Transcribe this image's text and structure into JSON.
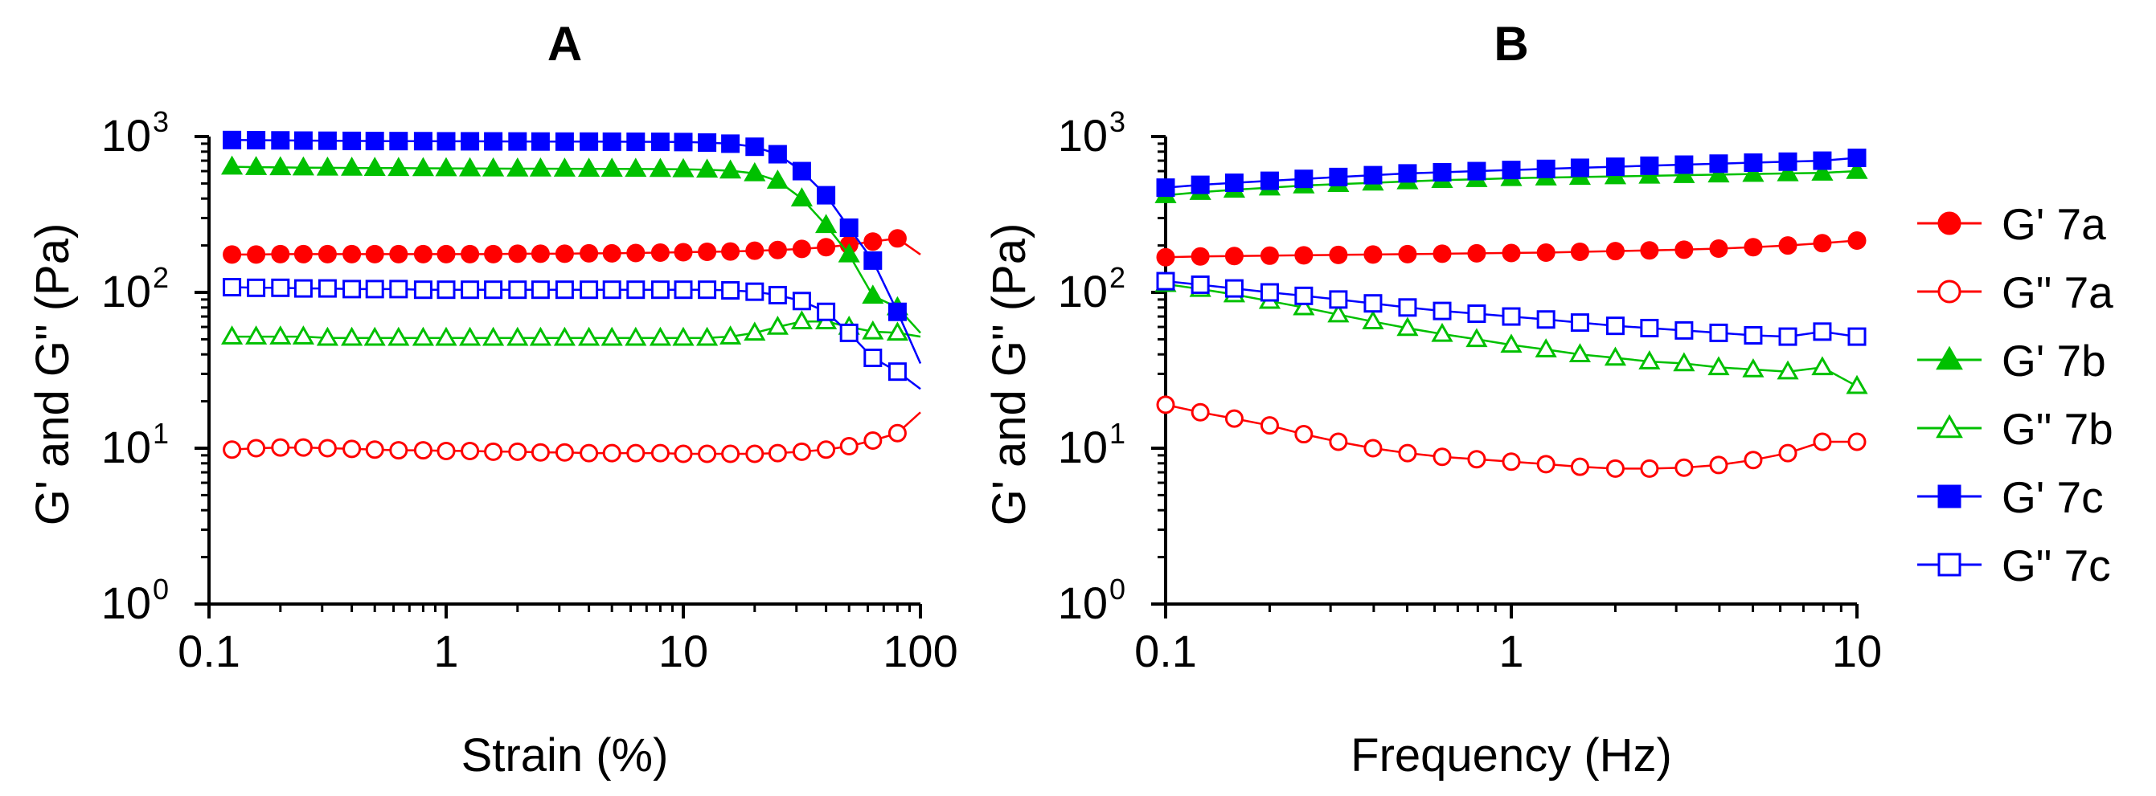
{
  "chart_data": [
    {
      "type": "line",
      "panel_label": "A",
      "xlabel": "Strain (%)",
      "ylabel": "G' and G\" (Pa)",
      "xscale": "log",
      "yscale": "log",
      "xlim": [
        0.1,
        100
      ],
      "ylim": [
        1,
        1000
      ],
      "xticks": [
        "0.1",
        "1",
        "10",
        "100"
      ],
      "yticks": [
        {
          "base": "10",
          "exp": "0"
        },
        {
          "base": "10",
          "exp": "1"
        },
        {
          "base": "10",
          "exp": "2"
        },
        {
          "base": "10",
          "exp": "3"
        }
      ],
      "x": [
        0.125,
        0.158,
        0.2,
        0.25,
        0.316,
        0.4,
        0.5,
        0.63,
        0.8,
        1.0,
        1.26,
        1.58,
        2.0,
        2.5,
        3.16,
        4.0,
        5.0,
        6.3,
        8.0,
        10,
        12.6,
        15.8,
        20,
        25,
        31.6,
        40,
        50,
        63,
        80
      ],
      "series": [
        {
          "name": "G' 7a",
          "color": "#ff0000",
          "marker": "circle",
          "filled": true,
          "values": [
            175,
            175,
            176,
            176,
            176,
            176,
            176,
            176,
            176,
            176,
            176,
            176,
            177,
            177,
            177,
            178,
            178,
            179,
            180,
            181,
            182,
            183,
            185,
            187,
            190,
            195,
            202,
            212,
            222
          ],
          "tail": [
            100,
            175
          ]
        },
        {
          "name": "G'' 7a",
          "color": "#ff0000",
          "marker": "circle",
          "filled": false,
          "values": [
            9.8,
            10.0,
            10.1,
            10.1,
            10.0,
            9.9,
            9.8,
            9.7,
            9.7,
            9.6,
            9.6,
            9.5,
            9.5,
            9.4,
            9.4,
            9.3,
            9.3,
            9.3,
            9.3,
            9.2,
            9.2,
            9.2,
            9.2,
            9.3,
            9.5,
            9.8,
            10.3,
            11.2,
            12.5
          ],
          "tail": [
            100,
            17
          ]
        },
        {
          "name": "G' 7b",
          "color": "#00c000",
          "marker": "triangle",
          "filled": true,
          "values": [
            640,
            636,
            634,
            632,
            630,
            629,
            628,
            627,
            626,
            625,
            624,
            623,
            622,
            622,
            621,
            620,
            620,
            619,
            618,
            616,
            612,
            604,
            580,
            520,
            400,
            270,
            175,
            95,
            80
          ],
          "tail": [
            100,
            55
          ]
        },
        {
          "name": "G'' 7b",
          "color": "#00c000",
          "marker": "triangle",
          "filled": false,
          "values": [
            52,
            52,
            52,
            52,
            51,
            51,
            51,
            51,
            51,
            51,
            51,
            51,
            51,
            51,
            51,
            51,
            51,
            51,
            51,
            51,
            51,
            52,
            55,
            60,
            65,
            65,
            60,
            56,
            55
          ],
          "tail": [
            100,
            52
          ]
        },
        {
          "name": "G' 7c",
          "color": "#0000ff",
          "marker": "square",
          "filled": true,
          "values": [
            950,
            948,
            945,
            942,
            940,
            938,
            936,
            935,
            934,
            932,
            932,
            931,
            930,
            929,
            928,
            928,
            927,
            926,
            925,
            922,
            915,
            900,
            860,
            770,
            600,
            420,
            260,
            160,
            75
          ],
          "tail": [
            100,
            35
          ]
        },
        {
          "name": "G'' 7c",
          "color": "#0000ff",
          "marker": "square",
          "filled": false,
          "values": [
            108,
            107,
            107,
            106,
            106,
            105,
            105,
            105,
            104,
            104,
            104,
            104,
            104,
            104,
            104,
            104,
            104,
            104,
            104,
            104,
            104,
            103,
            101,
            96,
            88,
            75,
            55,
            38,
            31
          ],
          "tail": [
            100,
            24
          ]
        }
      ]
    },
    {
      "type": "line",
      "panel_label": "B",
      "xlabel": "Frequency (Hz)",
      "ylabel": "G' and G\" (Pa)",
      "xscale": "log",
      "yscale": "log",
      "xlim": [
        0.1,
        10
      ],
      "ylim": [
        1,
        1000
      ],
      "xticks": [
        "0.1",
        "1",
        "10"
      ],
      "yticks": [
        {
          "base": "10",
          "exp": "0"
        },
        {
          "base": "10",
          "exp": "1"
        },
        {
          "base": "10",
          "exp": "2"
        },
        {
          "base": "10",
          "exp": "3"
        }
      ],
      "x": [
        0.1,
        0.126,
        0.158,
        0.2,
        0.251,
        0.316,
        0.398,
        0.501,
        0.631,
        0.794,
        1.0,
        1.26,
        1.58,
        2.0,
        2.51,
        3.16,
        3.98,
        5.01,
        6.31,
        7.94,
        10
      ],
      "series": [
        {
          "name": "G' 7a",
          "color": "#ff0000",
          "marker": "circle",
          "filled": true,
          "values": [
            168,
            170,
            171,
            172,
            173,
            174,
            175,
            176,
            177,
            178,
            179,
            180,
            182,
            184,
            186,
            188,
            191,
            195,
            200,
            207,
            215
          ]
        },
        {
          "name": "G'' 7a",
          "color": "#ff0000",
          "marker": "circle",
          "filled": false,
          "values": [
            19,
            17,
            15.5,
            14,
            12.3,
            11,
            10,
            9.3,
            8.8,
            8.5,
            8.2,
            7.9,
            7.6,
            7.4,
            7.4,
            7.5,
            7.8,
            8.4,
            9.3,
            11,
            11
          ]
        },
        {
          "name": "G' 7b",
          "color": "#00c000",
          "marker": "triangle",
          "filled": true,
          "values": [
            420,
            440,
            455,
            470,
            485,
            495,
            505,
            515,
            525,
            532,
            540,
            545,
            550,
            555,
            560,
            565,
            570,
            575,
            580,
            585,
            600
          ]
        },
        {
          "name": "G'' 7b",
          "color": "#00c000",
          "marker": "triangle",
          "filled": false,
          "values": [
            113,
            105,
            97,
            88,
            80,
            72,
            65,
            59,
            54,
            50,
            46,
            43,
            40,
            38,
            36,
            35,
            33,
            32,
            31,
            33,
            25
          ]
        },
        {
          "name": "G' 7c",
          "color": "#0000ff",
          "marker": "square",
          "filled": true,
          "values": [
            470,
            490,
            505,
            520,
            535,
            550,
            565,
            580,
            590,
            600,
            610,
            620,
            630,
            640,
            650,
            660,
            670,
            680,
            690,
            700,
            730
          ]
        },
        {
          "name": "G'' 7c",
          "color": "#0000ff",
          "marker": "square",
          "filled": false,
          "values": [
            118,
            112,
            106,
            100,
            95,
            90,
            85,
            80,
            76,
            73,
            70,
            67,
            64,
            61,
            59,
            57,
            55,
            53,
            52,
            56,
            52
          ]
        }
      ],
      "legend": {
        "placement": "right",
        "entries": [
          "G' 7a",
          "G\" 7a",
          "G' 7b",
          "G\" 7b",
          "G' 7c",
          "G\" 7c"
        ]
      }
    }
  ]
}
